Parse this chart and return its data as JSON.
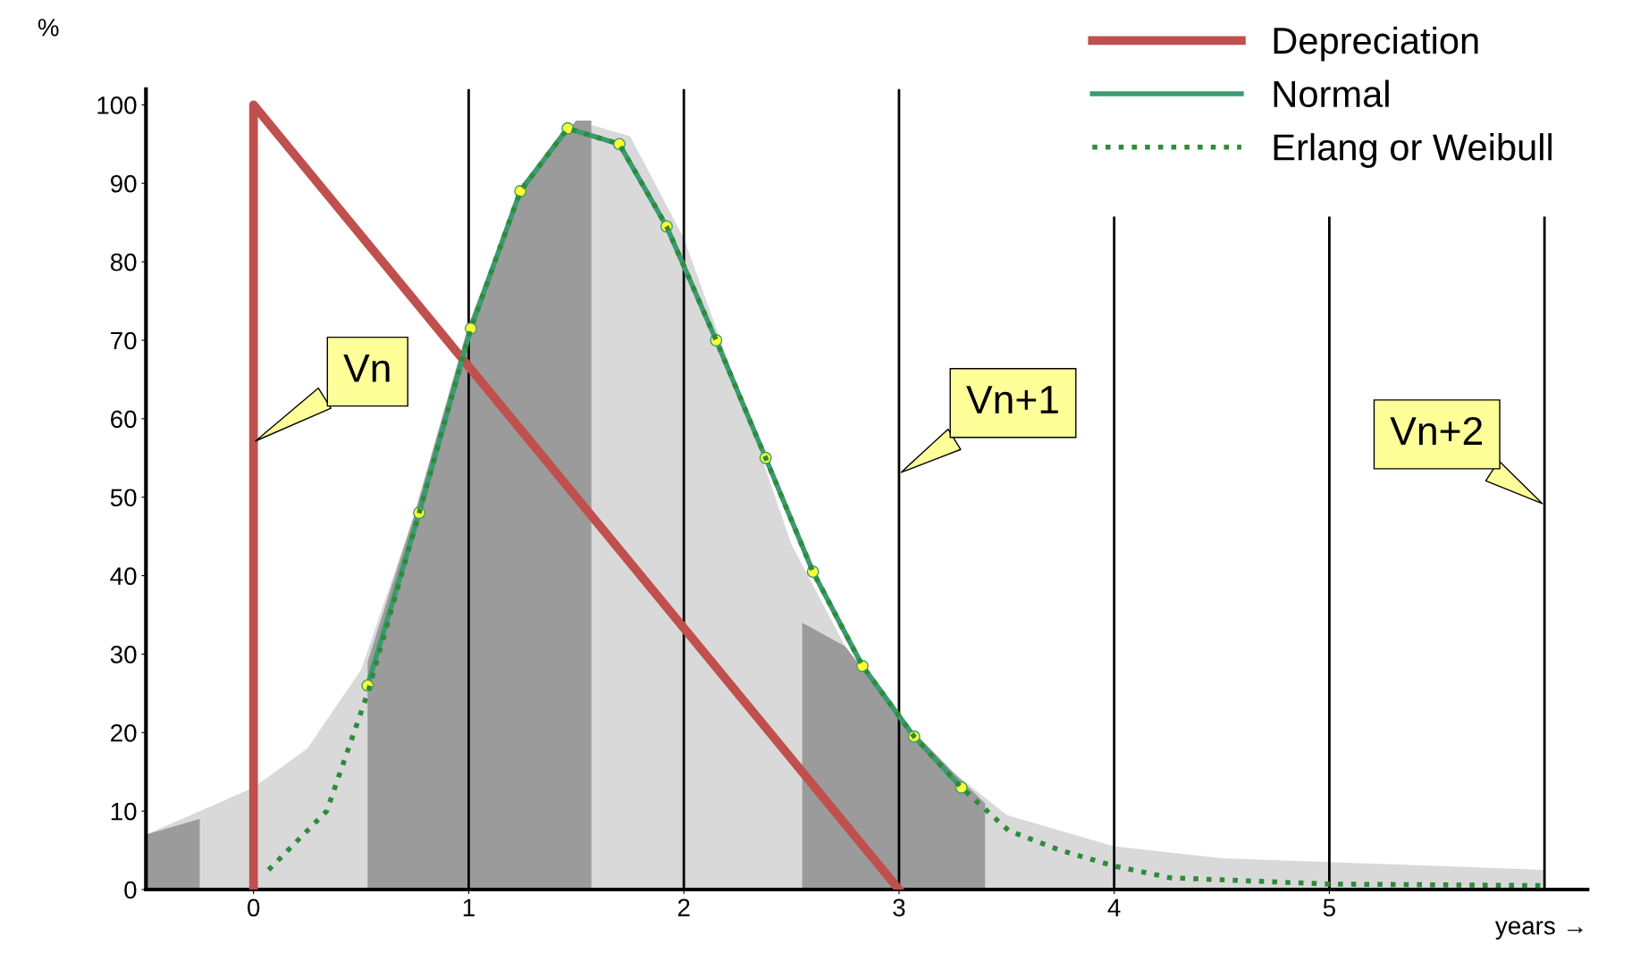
{
  "chart_data": {
    "type": "line",
    "xlabel": "years →",
    "ylabel": "%",
    "xlim": [
      -0.5,
      6.2
    ],
    "ylim": [
      0,
      102
    ],
    "xticks": [
      0,
      1,
      2,
      3,
      4,
      5
    ],
    "yticks": [
      0,
      10,
      20,
      30,
      40,
      50,
      60,
      70,
      80,
      90,
      100
    ],
    "grid": false,
    "legend": "top right",
    "series": [
      {
        "type": "area",
        "color": "#d9d9d9",
        "x": [
          -0.5,
          -0.25,
          0,
          0.25,
          0.5,
          0.75,
          1.0,
          1.25,
          1.5,
          1.75,
          2.0,
          2.25,
          2.5,
          2.75,
          3.0,
          3.25,
          3.5,
          4.0,
          4.5,
          5.0,
          6.0
        ],
        "values": [
          7,
          10,
          13,
          18,
          28,
          48,
          72,
          90,
          98,
          96,
          83,
          64,
          44,
          31,
          22,
          15,
          9.5,
          5.5,
          4,
          3.5,
          2.5
        ]
      },
      {
        "type": "area",
        "color": "#9b9b9b",
        "x": [
          -0.5,
          -0.25
        ],
        "values": [
          7,
          9
        ]
      },
      {
        "type": "area",
        "color": "#9b9b9b",
        "x": [
          0.53,
          0.75,
          1.0,
          1.25,
          1.5,
          1.57
        ],
        "values": [
          29,
          48,
          72,
          90,
          98,
          98
        ]
      },
      {
        "type": "area",
        "color": "#9b9b9b",
        "x": [
          2.55,
          2.75,
          3.0,
          3.25,
          3.4
        ],
        "values": [
          34,
          31,
          22,
          15,
          11
        ]
      },
      {
        "name": "Depreciation",
        "color": "#c0504d",
        "x": [
          0,
          0,
          3
        ],
        "values": [
          0,
          100,
          0
        ]
      },
      {
        "name": "Normal",
        "color": "#3a9a70",
        "marker": "circle",
        "x": [
          0.53,
          0.77,
          1.01,
          1.24,
          1.46,
          1.7,
          1.92,
          2.15,
          2.38,
          2.6,
          2.83,
          3.07,
          3.29
        ],
        "values": [
          26,
          48,
          71.5,
          89,
          97,
          95,
          84.5,
          70,
          55,
          40.5,
          28.5,
          19.5,
          13
        ]
      },
      {
        "name": "Erlang or Weibull",
        "color": "#2e8b3a",
        "line_style": "dotted",
        "x": [
          0.07,
          0.34,
          0.53,
          0.77,
          1.01,
          1.24,
          1.46,
          1.7,
          1.92,
          2.15,
          2.38,
          2.6,
          2.83,
          3.07,
          3.29,
          3.51,
          3.75,
          4.0,
          4.26,
          5.0,
          6.0
        ],
        "values": [
          2.5,
          10,
          25,
          48,
          71.5,
          89,
          97,
          95,
          84.5,
          70,
          55,
          40.5,
          28.5,
          19.5,
          13,
          7.5,
          5,
          3,
          1.5,
          0.7,
          0.5
        ]
      }
    ],
    "ref_lines": [
      {
        "axis": "x",
        "value": 1,
        "color": "#000000"
      },
      {
        "axis": "x",
        "value": 2,
        "color": "#000000"
      },
      {
        "axis": "x",
        "value": 3,
        "color": "#000000"
      },
      {
        "axis": "x",
        "value": 4,
        "color": "#000000"
      },
      {
        "axis": "x",
        "value": 5,
        "color": "#000000"
      },
      {
        "axis": "x",
        "value": 6,
        "color": "#000000"
      }
    ],
    "annotations": [
      {
        "text": "Vn",
        "x": 0,
        "y": 57
      },
      {
        "text": "Vn+1",
        "x": 3,
        "y": 53
      },
      {
        "text": "Vn+2",
        "x": 6,
        "y": 49
      }
    ]
  }
}
